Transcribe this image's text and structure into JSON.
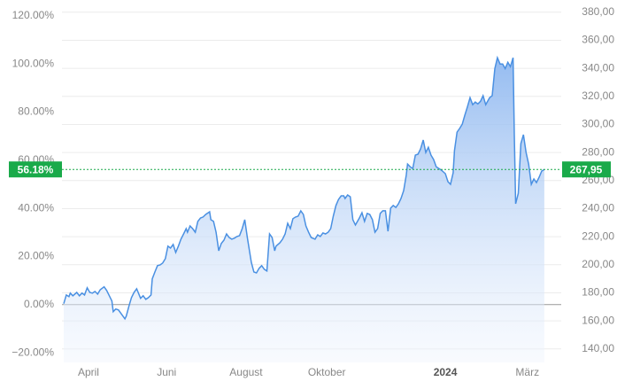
{
  "chart_data": {
    "type": "area",
    "x": [
      0,
      2,
      4,
      5,
      7,
      10,
      12,
      14,
      16,
      18,
      20,
      22,
      24,
      26,
      28,
      31,
      33,
      35,
      37,
      38,
      40,
      42,
      45,
      47,
      48,
      50,
      52,
      54,
      56,
      59,
      61,
      63,
      65,
      67,
      68,
      70,
      72,
      74,
      76,
      78,
      80,
      82,
      84,
      86,
      88,
      90,
      92,
      94,
      95,
      97,
      99,
      101,
      103,
      105,
      107,
      109,
      112,
      113,
      115,
      117,
      119,
      121,
      123,
      125,
      127,
      129,
      131,
      133,
      135,
      137,
      139,
      141,
      144,
      146,
      148,
      150,
      152,
      154,
      156,
      158,
      160,
      162,
      163,
      166,
      168,
      170,
      172,
      174,
      176,
      178,
      180,
      182,
      184,
      186,
      188,
      190,
      193,
      195,
      197,
      199,
      201,
      203,
      205,
      207,
      209,
      211,
      213,
      215,
      216,
      218,
      220,
      222,
      224,
      227,
      229,
      231,
      233,
      235,
      237,
      239,
      241,
      243,
      245,
      247,
      249,
      251,
      253,
      255,
      257,
      259,
      261,
      263,
      264,
      266,
      268,
      270,
      272,
      274,
      276,
      278,
      280,
      282,
      284,
      286,
      288,
      290,
      293,
      295,
      297,
      299,
      300,
      302,
      304,
      306,
      308,
      310,
      312,
      314,
      316,
      318,
      320,
      322,
      324,
      327,
      329,
      331,
      333,
      335,
      337,
      339,
      341,
      343,
      345,
      346,
      347,
      349,
      351,
      353,
      355,
      357,
      359,
      361,
      363,
      365,
      367,
      369
    ],
    "series": [
      {
        "color": "#4a90e2",
        "values": [
          0.4,
          4.0,
          3.3,
          4.8,
          3.7,
          5.1,
          3.7,
          4.8,
          4.0,
          7.0,
          5.1,
          4.8,
          5.5,
          4.4,
          6.2,
          7.4,
          5.9,
          3.7,
          1.5,
          -2.9,
          -1.8,
          -2.2,
          -4.4,
          -5.9,
          -4.8,
          -0.7,
          2.9,
          5.1,
          6.6,
          2.6,
          3.7,
          2.2,
          2.9,
          4.0,
          10.7,
          13.6,
          16.2,
          16.5,
          17.3,
          19.1,
          24.3,
          23.5,
          25.0,
          21.7,
          24.3,
          27.2,
          29.4,
          31.6,
          30.1,
          32.7,
          31.6,
          30.1,
          34.6,
          36.0,
          36.4,
          37.5,
          38.6,
          35.3,
          34.6,
          30.1,
          22.4,
          25.4,
          26.8,
          29.4,
          27.9,
          27.2,
          27.6,
          28.3,
          28.7,
          31.6,
          35.3,
          27.9,
          17.6,
          13.6,
          13.2,
          15.1,
          16.2,
          14.7,
          14.0,
          29.4,
          27.9,
          22.4,
          24.3,
          25.7,
          27.2,
          29.4,
          33.8,
          31.6,
          35.7,
          36.4,
          36.8,
          39.0,
          37.5,
          32.7,
          30.1,
          27.9,
          27.2,
          29.0,
          28.3,
          29.8,
          29.4,
          30.1,
          31.6,
          36.8,
          41.2,
          43.7,
          45.2,
          45.2,
          44.1,
          45.6,
          44.8,
          35.3,
          33.1,
          36.0,
          38.2,
          34.6,
          37.9,
          37.5,
          35.3,
          30.1,
          31.6,
          37.9,
          39.0,
          39.0,
          30.5,
          40.1,
          41.2,
          40.4,
          41.9,
          44.1,
          47.4,
          53.7,
          58.4,
          57.3,
          56.6,
          62.1,
          62.5,
          64.7,
          68.4,
          63.2,
          65.4,
          62.1,
          60.3,
          57.3,
          56.6,
          55.9,
          54.4,
          51.1,
          50.0,
          54.8,
          64.0,
          71.7,
          73.2,
          75.0,
          78.7,
          82.3,
          86.0,
          83.1,
          84.2,
          83.4,
          84.5,
          86.8,
          83.1,
          86.0,
          86.8,
          98.1,
          102.6,
          100.0,
          100.0,
          98.1,
          100.7,
          98.9,
          102.6,
          70.6,
          41.9,
          46.3,
          66.9,
          70.6,
          63.2,
          58.4,
          50.0,
          52.2,
          50.7,
          52.9,
          55.5,
          56.18
        ]
      }
    ],
    "xlim": [
      0,
      382
    ],
    "xticks": [
      {
        "value": 19,
        "label": "April"
      },
      {
        "value": 79,
        "label": "Juni"
      },
      {
        "value": 140,
        "label": "August"
      },
      {
        "value": 202,
        "label": "Oktober"
      },
      {
        "value": 293,
        "label": "2024",
        "bold": true
      },
      {
        "value": 356,
        "label": "März"
      }
    ],
    "ylim": [
      -24,
      124
    ],
    "yticks": [
      {
        "value": -20,
        "label": "−20.00%"
      },
      {
        "value": 0,
        "label": "0.00%"
      },
      {
        "value": 20,
        "label": "20.00%"
      },
      {
        "value": 40,
        "label": "40.00%"
      },
      {
        "value": 60,
        "label": "60.00%"
      },
      {
        "value": 80,
        "label": "80.00%"
      },
      {
        "value": 100,
        "label": "100.00%"
      },
      {
        "value": 120,
        "label": "120.00%"
      }
    ],
    "y2lim": [
      130.4,
      384.3
    ],
    "y2ticks": [
      {
        "value": 140,
        "label": "140,00"
      },
      {
        "value": 160,
        "label": "160,00"
      },
      {
        "value": 180,
        "label": "180,00"
      },
      {
        "value": 200,
        "label": "200,00"
      },
      {
        "value": 220,
        "label": "220,00"
      },
      {
        "value": 240,
        "label": "240,00"
      },
      {
        "value": 260,
        "label": "260,00"
      },
      {
        "value": 280,
        "label": "280,00"
      },
      {
        "value": 300,
        "label": "300,00"
      },
      {
        "value": 320,
        "label": "320,00"
      },
      {
        "value": 340,
        "label": "340,00"
      },
      {
        "value": 360,
        "label": "360,00"
      },
      {
        "value": 380,
        "label": "380,00"
      }
    ],
    "grid": true,
    "current": {
      "value": 56.18,
      "label": "56.18%"
    },
    "current_price": {
      "value": 267.95,
      "label": "267,95"
    },
    "marker_color": "#1aaa4a"
  }
}
